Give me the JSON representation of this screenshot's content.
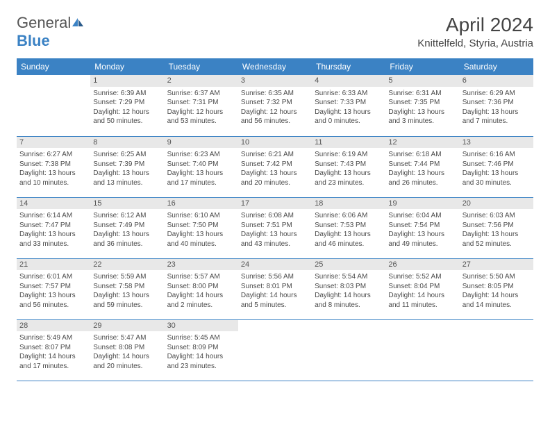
{
  "logo": {
    "text1": "General",
    "text2": "Blue"
  },
  "title": "April 2024",
  "location": "Knittelfeld, Styria, Austria",
  "colors": {
    "header_bg": "#3b82c4",
    "header_text": "#ffffff",
    "border": "#3b82c4",
    "daynum_bg": "#e8e8e8",
    "text": "#4a4a4a"
  },
  "weekdays": [
    "Sunday",
    "Monday",
    "Tuesday",
    "Wednesday",
    "Thursday",
    "Friday",
    "Saturday"
  ],
  "weeks": [
    [
      null,
      {
        "n": "1",
        "sunrise": "Sunrise: 6:39 AM",
        "sunset": "Sunset: 7:29 PM",
        "day1": "Daylight: 12 hours",
        "day2": "and 50 minutes."
      },
      {
        "n": "2",
        "sunrise": "Sunrise: 6:37 AM",
        "sunset": "Sunset: 7:31 PM",
        "day1": "Daylight: 12 hours",
        "day2": "and 53 minutes."
      },
      {
        "n": "3",
        "sunrise": "Sunrise: 6:35 AM",
        "sunset": "Sunset: 7:32 PM",
        "day1": "Daylight: 12 hours",
        "day2": "and 56 minutes."
      },
      {
        "n": "4",
        "sunrise": "Sunrise: 6:33 AM",
        "sunset": "Sunset: 7:33 PM",
        "day1": "Daylight: 13 hours",
        "day2": "and 0 minutes."
      },
      {
        "n": "5",
        "sunrise": "Sunrise: 6:31 AM",
        "sunset": "Sunset: 7:35 PM",
        "day1": "Daylight: 13 hours",
        "day2": "and 3 minutes."
      },
      {
        "n": "6",
        "sunrise": "Sunrise: 6:29 AM",
        "sunset": "Sunset: 7:36 PM",
        "day1": "Daylight: 13 hours",
        "day2": "and 7 minutes."
      }
    ],
    [
      {
        "n": "7",
        "sunrise": "Sunrise: 6:27 AM",
        "sunset": "Sunset: 7:38 PM",
        "day1": "Daylight: 13 hours",
        "day2": "and 10 minutes."
      },
      {
        "n": "8",
        "sunrise": "Sunrise: 6:25 AM",
        "sunset": "Sunset: 7:39 PM",
        "day1": "Daylight: 13 hours",
        "day2": "and 13 minutes."
      },
      {
        "n": "9",
        "sunrise": "Sunrise: 6:23 AM",
        "sunset": "Sunset: 7:40 PM",
        "day1": "Daylight: 13 hours",
        "day2": "and 17 minutes."
      },
      {
        "n": "10",
        "sunrise": "Sunrise: 6:21 AM",
        "sunset": "Sunset: 7:42 PM",
        "day1": "Daylight: 13 hours",
        "day2": "and 20 minutes."
      },
      {
        "n": "11",
        "sunrise": "Sunrise: 6:19 AM",
        "sunset": "Sunset: 7:43 PM",
        "day1": "Daylight: 13 hours",
        "day2": "and 23 minutes."
      },
      {
        "n": "12",
        "sunrise": "Sunrise: 6:18 AM",
        "sunset": "Sunset: 7:44 PM",
        "day1": "Daylight: 13 hours",
        "day2": "and 26 minutes."
      },
      {
        "n": "13",
        "sunrise": "Sunrise: 6:16 AM",
        "sunset": "Sunset: 7:46 PM",
        "day1": "Daylight: 13 hours",
        "day2": "and 30 minutes."
      }
    ],
    [
      {
        "n": "14",
        "sunrise": "Sunrise: 6:14 AM",
        "sunset": "Sunset: 7:47 PM",
        "day1": "Daylight: 13 hours",
        "day2": "and 33 minutes."
      },
      {
        "n": "15",
        "sunrise": "Sunrise: 6:12 AM",
        "sunset": "Sunset: 7:49 PM",
        "day1": "Daylight: 13 hours",
        "day2": "and 36 minutes."
      },
      {
        "n": "16",
        "sunrise": "Sunrise: 6:10 AM",
        "sunset": "Sunset: 7:50 PM",
        "day1": "Daylight: 13 hours",
        "day2": "and 40 minutes."
      },
      {
        "n": "17",
        "sunrise": "Sunrise: 6:08 AM",
        "sunset": "Sunset: 7:51 PM",
        "day1": "Daylight: 13 hours",
        "day2": "and 43 minutes."
      },
      {
        "n": "18",
        "sunrise": "Sunrise: 6:06 AM",
        "sunset": "Sunset: 7:53 PM",
        "day1": "Daylight: 13 hours",
        "day2": "and 46 minutes."
      },
      {
        "n": "19",
        "sunrise": "Sunrise: 6:04 AM",
        "sunset": "Sunset: 7:54 PM",
        "day1": "Daylight: 13 hours",
        "day2": "and 49 minutes."
      },
      {
        "n": "20",
        "sunrise": "Sunrise: 6:03 AM",
        "sunset": "Sunset: 7:56 PM",
        "day1": "Daylight: 13 hours",
        "day2": "and 52 minutes."
      }
    ],
    [
      {
        "n": "21",
        "sunrise": "Sunrise: 6:01 AM",
        "sunset": "Sunset: 7:57 PM",
        "day1": "Daylight: 13 hours",
        "day2": "and 56 minutes."
      },
      {
        "n": "22",
        "sunrise": "Sunrise: 5:59 AM",
        "sunset": "Sunset: 7:58 PM",
        "day1": "Daylight: 13 hours",
        "day2": "and 59 minutes."
      },
      {
        "n": "23",
        "sunrise": "Sunrise: 5:57 AM",
        "sunset": "Sunset: 8:00 PM",
        "day1": "Daylight: 14 hours",
        "day2": "and 2 minutes."
      },
      {
        "n": "24",
        "sunrise": "Sunrise: 5:56 AM",
        "sunset": "Sunset: 8:01 PM",
        "day1": "Daylight: 14 hours",
        "day2": "and 5 minutes."
      },
      {
        "n": "25",
        "sunrise": "Sunrise: 5:54 AM",
        "sunset": "Sunset: 8:03 PM",
        "day1": "Daylight: 14 hours",
        "day2": "and 8 minutes."
      },
      {
        "n": "26",
        "sunrise": "Sunrise: 5:52 AM",
        "sunset": "Sunset: 8:04 PM",
        "day1": "Daylight: 14 hours",
        "day2": "and 11 minutes."
      },
      {
        "n": "27",
        "sunrise": "Sunrise: 5:50 AM",
        "sunset": "Sunset: 8:05 PM",
        "day1": "Daylight: 14 hours",
        "day2": "and 14 minutes."
      }
    ],
    [
      {
        "n": "28",
        "sunrise": "Sunrise: 5:49 AM",
        "sunset": "Sunset: 8:07 PM",
        "day1": "Daylight: 14 hours",
        "day2": "and 17 minutes."
      },
      {
        "n": "29",
        "sunrise": "Sunrise: 5:47 AM",
        "sunset": "Sunset: 8:08 PM",
        "day1": "Daylight: 14 hours",
        "day2": "and 20 minutes."
      },
      {
        "n": "30",
        "sunrise": "Sunrise: 5:45 AM",
        "sunset": "Sunset: 8:09 PM",
        "day1": "Daylight: 14 hours",
        "day2": "and 23 minutes."
      },
      null,
      null,
      null,
      null
    ]
  ]
}
